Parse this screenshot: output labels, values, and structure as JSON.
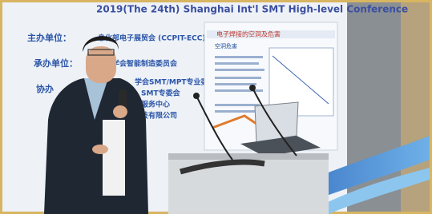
{
  "banner": {
    "title": "2019(The 24th) Shanghai Int'l SMT High-level Conference",
    "rows": [
      {
        "label": "主办单位：",
        "text": "息化部电子展贸会 (CCPIT-ECC)"
      },
      {
        "label": "承办单位：",
        "text": "学会智能制造委员会"
      },
      {
        "label": "协办",
        "text": "学会SMT/MPT专业委员会"
      }
    ],
    "extra": [
      "SMT专委会",
      "服务中心",
      "技有限公司"
    ]
  },
  "slide": {
    "title": "电子焊接的空洞及危害",
    "heading": "空洞危害"
  }
}
